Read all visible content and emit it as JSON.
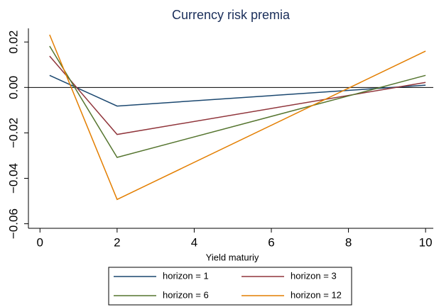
{
  "chart_data": {
    "type": "line",
    "title": "Currency risk premia",
    "x_label": "Yield maturiy",
    "x": [
      0.25,
      2,
      10
    ],
    "series": [
      {
        "name": "horizon = 1",
        "color": "#1a476f",
        "values": [
          0.0053,
          -0.0082,
          0.001
        ]
      },
      {
        "name": "horizon = 3",
        "color": "#90353b",
        "values": [
          0.0138,
          -0.0207,
          0.0022
        ]
      },
      {
        "name": "horizon = 6",
        "color": "#55752f",
        "values": [
          0.0182,
          -0.0308,
          0.0053
        ]
      },
      {
        "name": "horizon = 12",
        "color": "#e37e00",
        "values": [
          0.0232,
          -0.0493,
          0.016
        ]
      }
    ],
    "xlim": [
      -0.3,
      10.2
    ],
    "ylim": [
      -0.062,
      0.026
    ],
    "xticks": [
      0,
      2,
      4,
      6,
      8,
      10
    ],
    "yticks": [
      {
        "value": -0.06,
        "label": "−0.06"
      },
      {
        "value": -0.04,
        "label": "−0.04"
      },
      {
        "value": -0.02,
        "label": "−0.02"
      },
      {
        "value": 0,
        "label": "0.00"
      },
      {
        "value": 0.02,
        "label": "0.02"
      }
    ],
    "yline": 0
  }
}
